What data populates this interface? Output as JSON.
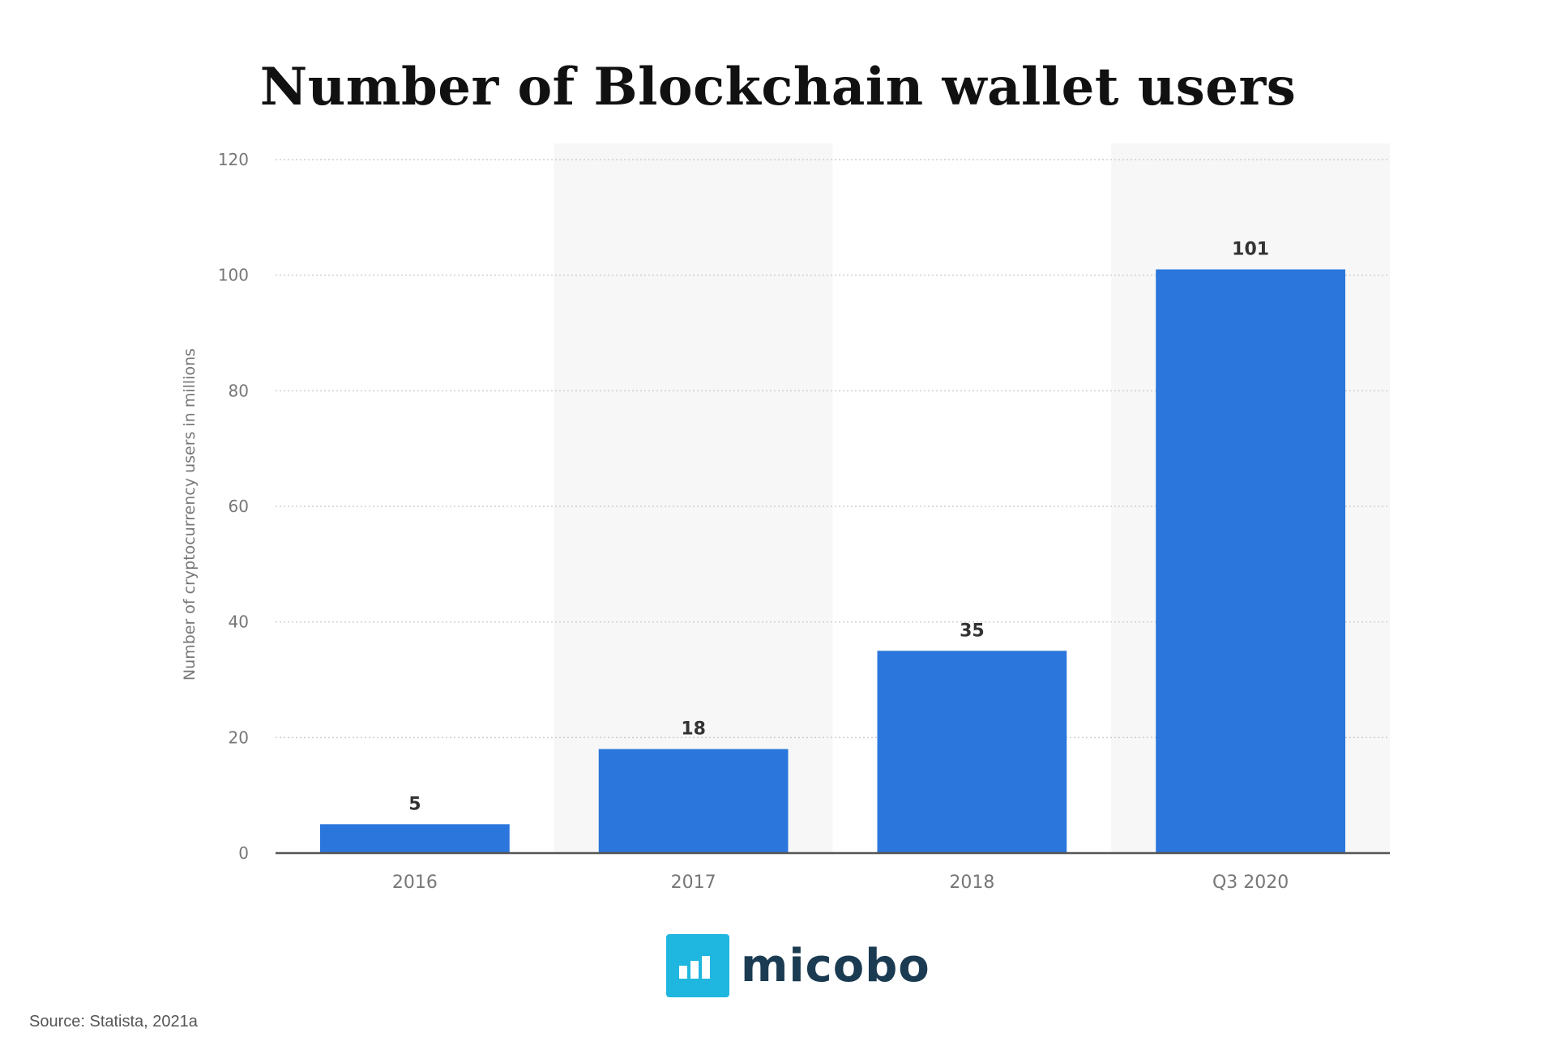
{
  "chart_data": {
    "type": "bar",
    "title": "Number of Blockchain wallet users",
    "categories": [
      "2016",
      "2017",
      "2018",
      "Q3 2020"
    ],
    "values": [
      5,
      18,
      35,
      101
    ],
    "data_labels": [
      "5",
      "18",
      "35",
      "101"
    ],
    "xlabel": "",
    "ylabel": "Number of cryptocurrency users in millions",
    "ylim": [
      0,
      120
    ],
    "yticks": [
      0,
      20,
      40,
      60,
      80,
      100,
      120
    ],
    "grid": true,
    "legend": "none",
    "colors": {
      "bar": "#2a76dc",
      "band": "#f7f7f7",
      "grid": "#cfcfcf",
      "axis": "#555555",
      "tick_text": "#777777",
      "data_label": "#333333"
    }
  },
  "logo": {
    "text": "micobo",
    "mark_color": "#1fb6e0"
  },
  "source": "Source: Statista, 2021a"
}
